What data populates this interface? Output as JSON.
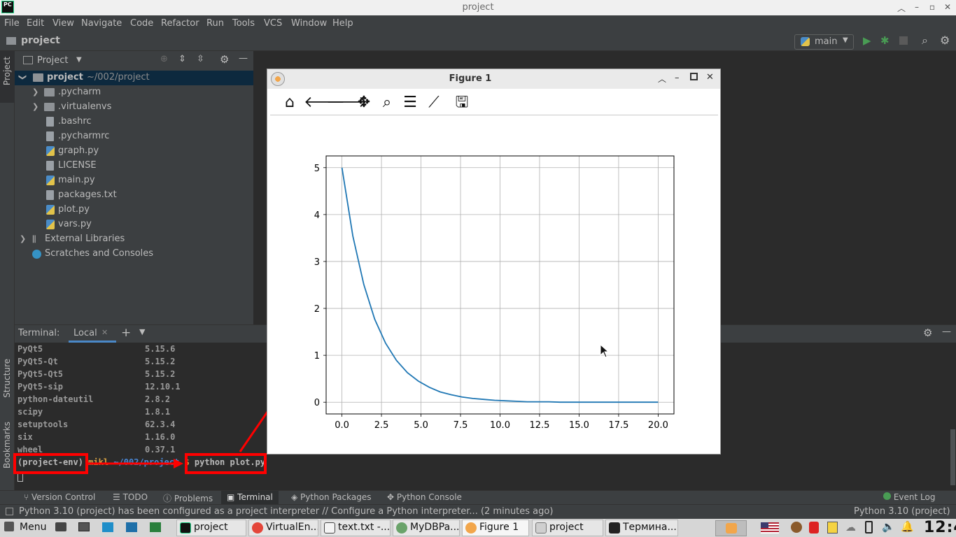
{
  "window": {
    "title": "project"
  },
  "menu": [
    "File",
    "Edit",
    "View",
    "Navigate",
    "Code",
    "Refactor",
    "Run",
    "Tools",
    "VCS",
    "Window",
    "Help"
  ],
  "navbar": {
    "project": "project",
    "run_config": "main"
  },
  "left_strip": {
    "project_tab": "Project",
    "structure_tab": "Structure",
    "bookmarks_tab": "Bookmarks"
  },
  "project_panel": {
    "title": "Project",
    "root": {
      "name": "project",
      "path": "~/002/project"
    },
    "items": [
      {
        "name": ".pycharm",
        "kind": "folder"
      },
      {
        "name": ".virtualenvs",
        "kind": "folder"
      },
      {
        "name": ".bashrc",
        "kind": "file"
      },
      {
        "name": ".pycharmrc",
        "kind": "file"
      },
      {
        "name": "graph.py",
        "kind": "py"
      },
      {
        "name": "LICENSE",
        "kind": "file"
      },
      {
        "name": "main.py",
        "kind": "py"
      },
      {
        "name": "packages.txt",
        "kind": "file"
      },
      {
        "name": "plot.py",
        "kind": "py"
      },
      {
        "name": "vars.py",
        "kind": "py"
      }
    ],
    "external_libraries": "External Libraries",
    "scratches": "Scratches and Consoles"
  },
  "terminal": {
    "label": "Terminal:",
    "tab": "Local",
    "packages": [
      {
        "name": "PyQt5",
        "version": "5.15.6"
      },
      {
        "name": "PyQt5-Qt",
        "version": "5.15.2"
      },
      {
        "name": "PyQt5-Qt5",
        "version": "5.15.2"
      },
      {
        "name": "PyQt5-sip",
        "version": "12.10.1"
      },
      {
        "name": "python-dateutil",
        "version": "2.8.2"
      },
      {
        "name": "scipy",
        "version": "1.8.1"
      },
      {
        "name": "setuptools",
        "version": "62.3.4"
      },
      {
        "name": "six",
        "version": "1.16.0"
      },
      {
        "name": "wheel",
        "version": "0.37.1"
      }
    ],
    "prompt_env": "(project-env)",
    "prompt_user": "mikl",
    "prompt_path": "~/002/project",
    "prompt_symbol": "$",
    "command": "python plot.py"
  },
  "bottom_tabs": [
    "Version Control",
    "TODO",
    "Problems",
    "Terminal",
    "Python Packages",
    "Python Console"
  ],
  "event_log": "Event Log",
  "status": {
    "message": "Python 3.10 (project) has been configured as a project interpreter // Configure a Python interpreter... (2 minutes ago)",
    "interpreter": "Python 3.10 (project)"
  },
  "figure": {
    "title": "Figure 1",
    "toolbar": [
      "home",
      "back",
      "forward",
      "pan",
      "zoom",
      "subplots",
      "customize",
      "save"
    ]
  },
  "chart_data": {
    "type": "line",
    "title": "",
    "xlabel": "",
    "ylabel": "",
    "xlim": [
      -1,
      21
    ],
    "ylim": [
      -0.25,
      5.25
    ],
    "grid": true,
    "xticks": [
      "0.0",
      "2.5",
      "5.0",
      "7.5",
      "10.0",
      "12.5",
      "15.0",
      "17.5",
      "20.0"
    ],
    "yticks": [
      "0",
      "1",
      "2",
      "3",
      "4",
      "5"
    ],
    "series": [
      {
        "color": "#1f77b4",
        "x": [
          0,
          0.69,
          1.38,
          2.07,
          2.76,
          3.45,
          4.14,
          4.83,
          5.52,
          6.21,
          6.9,
          7.59,
          8.28,
          8.97,
          9.66,
          10.34,
          11.03,
          11.72,
          12.41,
          13.1,
          13.79,
          14.48,
          15.17,
          15.86,
          16.55,
          17.24,
          17.93,
          18.62,
          19.31,
          20
        ],
        "y": [
          5.0,
          3.54,
          2.51,
          1.77,
          1.26,
          0.89,
          0.63,
          0.45,
          0.32,
          0.22,
          0.16,
          0.11,
          0.08,
          0.06,
          0.04,
          0.03,
          0.02,
          0.01,
          0.01,
          0.01,
          0.0,
          0.0,
          0.0,
          0.0,
          0.0,
          0.0,
          0.0,
          0.0,
          0.0,
          0.0
        ]
      }
    ]
  },
  "taskbar": {
    "menu": "Menu",
    "tasks": [
      "project",
      "VirtualEn...",
      "text.txt -...",
      "MyDBPa...",
      "Figure 1",
      "project",
      "Термина..."
    ],
    "clock": "12:4"
  },
  "colors": {
    "accent": "#2d5da1",
    "annotation": "#ff0000",
    "line": "#1f77b4"
  }
}
